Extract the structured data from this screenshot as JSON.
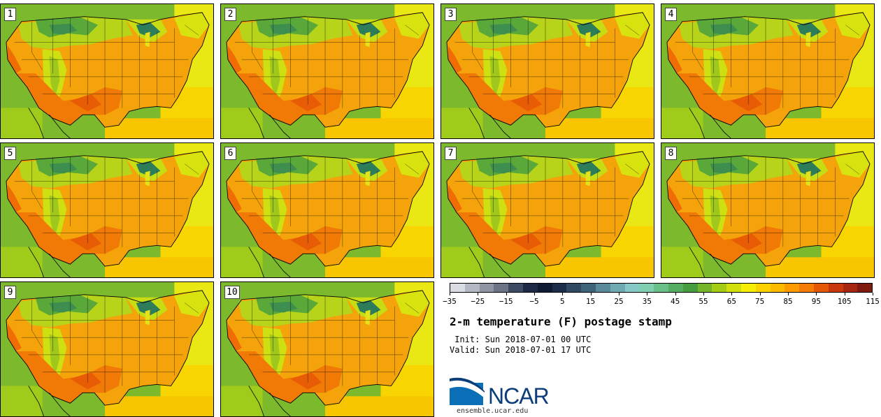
{
  "panels": [
    {
      "label": "1"
    },
    {
      "label": "2"
    },
    {
      "label": "3"
    },
    {
      "label": "4"
    },
    {
      "label": "5"
    },
    {
      "label": "6"
    },
    {
      "label": "7"
    },
    {
      "label": "8"
    },
    {
      "label": "9"
    },
    {
      "label": "10"
    }
  ],
  "colorbar": {
    "colors": [
      "#d9dde3",
      "#b3b8c2",
      "#8f95a2",
      "#6b7384",
      "#3d4a63",
      "#1e2a45",
      "#0f1a33",
      "#1d2c48",
      "#2f4a60",
      "#3f6378",
      "#5a8a9a",
      "#6fa9b2",
      "#86c8c8",
      "#7fcfb0",
      "#68c088",
      "#53ae64",
      "#469d3f",
      "#74b52a",
      "#a5cc14",
      "#d3df0a",
      "#f7ee05",
      "#fbd100",
      "#fbba00",
      "#fb9b00",
      "#f57c06",
      "#e45808",
      "#c8380c",
      "#a8260f",
      "#7e1a0e"
    ],
    "tick_labels": [
      "−35",
      "−25",
      "−15",
      "−5",
      "5",
      "15",
      "25",
      "35",
      "45",
      "55",
      "65",
      "75",
      "85",
      "95",
      "105",
      "115"
    ]
  },
  "title": "2-m temperature (F) postage stamp",
  "init_line": " Init: Sun 2018-07-01 00 UTC",
  "valid_line": "Valid: Sun 2018-07-01 17 UTC",
  "logo": {
    "text": "NCAR",
    "color": "#0b3d7a"
  },
  "site": "ensemble.ucar.edu"
}
